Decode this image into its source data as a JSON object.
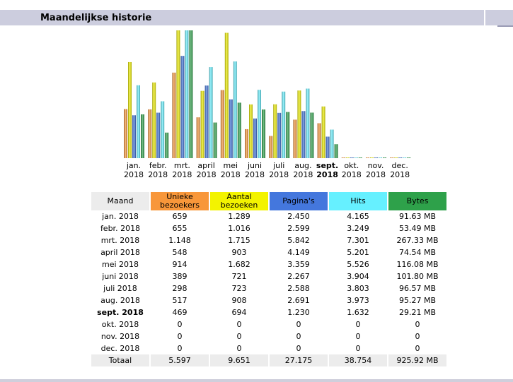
{
  "section_title": "Maandelijkse historie",
  "colors": {
    "visitors": "#f8973a",
    "visits": "#f3f300",
    "pages": "#4477dd",
    "hits": "#66f0ff",
    "bytes": "#2ea14a",
    "month_header": "#ececec"
  },
  "table": {
    "headers": [
      "Maand",
      "Unieke bezoekers",
      "Aantal bezoeken",
      "Pagina's",
      "Hits",
      "Bytes"
    ],
    "rows": [
      {
        "month": "jan. 2018",
        "visitors": "659",
        "visits": "1.289",
        "pages": "2.450",
        "hits": "4.165",
        "bytes": "91.63 MB",
        "current": false
      },
      {
        "month": "febr. 2018",
        "visitors": "655",
        "visits": "1.016",
        "pages": "2.599",
        "hits": "3.249",
        "bytes": "53.49 MB",
        "current": false
      },
      {
        "month": "mrt. 2018",
        "visitors": "1.148",
        "visits": "1.715",
        "pages": "5.842",
        "hits": "7.301",
        "bytes": "267.33 MB",
        "current": false
      },
      {
        "month": "april 2018",
        "visitors": "548",
        "visits": "903",
        "pages": "4.149",
        "hits": "5.201",
        "bytes": "74.54 MB",
        "current": false
      },
      {
        "month": "mei 2018",
        "visitors": "914",
        "visits": "1.682",
        "pages": "3.359",
        "hits": "5.526",
        "bytes": "116.08 MB",
        "current": false
      },
      {
        "month": "juni 2018",
        "visitors": "389",
        "visits": "721",
        "pages": "2.267",
        "hits": "3.904",
        "bytes": "101.80 MB",
        "current": false
      },
      {
        "month": "juli 2018",
        "visitors": "298",
        "visits": "723",
        "pages": "2.588",
        "hits": "3.803",
        "bytes": "96.57 MB",
        "current": false
      },
      {
        "month": "aug. 2018",
        "visitors": "517",
        "visits": "908",
        "pages": "2.691",
        "hits": "3.973",
        "bytes": "95.27 MB",
        "current": false
      },
      {
        "month": "sept. 2018",
        "visitors": "469",
        "visits": "694",
        "pages": "1.230",
        "hits": "1.632",
        "bytes": "29.21 MB",
        "current": true
      },
      {
        "month": "okt. 2018",
        "visitors": "0",
        "visits": "0",
        "pages": "0",
        "hits": "0",
        "bytes": "0",
        "current": false
      },
      {
        "month": "nov. 2018",
        "visitors": "0",
        "visits": "0",
        "pages": "0",
        "hits": "0",
        "bytes": "0",
        "current": false
      },
      {
        "month": "dec. 2018",
        "visitors": "0",
        "visits": "0",
        "pages": "0",
        "hits": "0",
        "bytes": "0",
        "current": false
      }
    ],
    "total": {
      "label": "Totaal",
      "visitors": "5.597",
      "visits": "9.651",
      "pages": "27.175",
      "hits": "38.754",
      "bytes": "925.92 MB"
    }
  },
  "chart_data": {
    "type": "bar",
    "categories": [
      [
        "jan.",
        "2018"
      ],
      [
        "febr.",
        "2018"
      ],
      [
        "mrt.",
        "2018"
      ],
      [
        "april",
        "2018"
      ],
      [
        "mei",
        "2018"
      ],
      [
        "juni",
        "2018"
      ],
      [
        "juli",
        "2018"
      ],
      [
        "aug.",
        "2018"
      ],
      [
        "sept.",
        "2018"
      ],
      [
        "okt.",
        "2018"
      ],
      [
        "nov.",
        "2018"
      ],
      [
        "dec.",
        "2018"
      ]
    ],
    "current_index": 8,
    "series": [
      {
        "key": "visitors",
        "values": [
          659,
          655,
          1148,
          548,
          914,
          389,
          298,
          517,
          469,
          0,
          0,
          0
        ]
      },
      {
        "key": "visits",
        "values": [
          1289,
          1016,
          1715,
          903,
          1682,
          721,
          723,
          908,
          694,
          0,
          0,
          0
        ]
      },
      {
        "key": "pages",
        "values": [
          2450,
          2599,
          5842,
          4149,
          3359,
          2267,
          2588,
          2691,
          1230,
          0,
          0,
          0
        ]
      },
      {
        "key": "hits",
        "values": [
          4165,
          3249,
          7301,
          5201,
          5526,
          3904,
          3803,
          3973,
          1632,
          0,
          0,
          0
        ]
      },
      {
        "key": "bytes",
        "values": [
          91.63,
          53.49,
          267.33,
          74.54,
          116.08,
          101.8,
          96.57,
          95.27,
          29.21,
          0,
          0,
          0
        ]
      }
    ],
    "bar_scale": {
      "visitors": "visits",
      "visits": "visits",
      "pages": "hits",
      "hits": "hits",
      "bytes": "bytes"
    }
  }
}
